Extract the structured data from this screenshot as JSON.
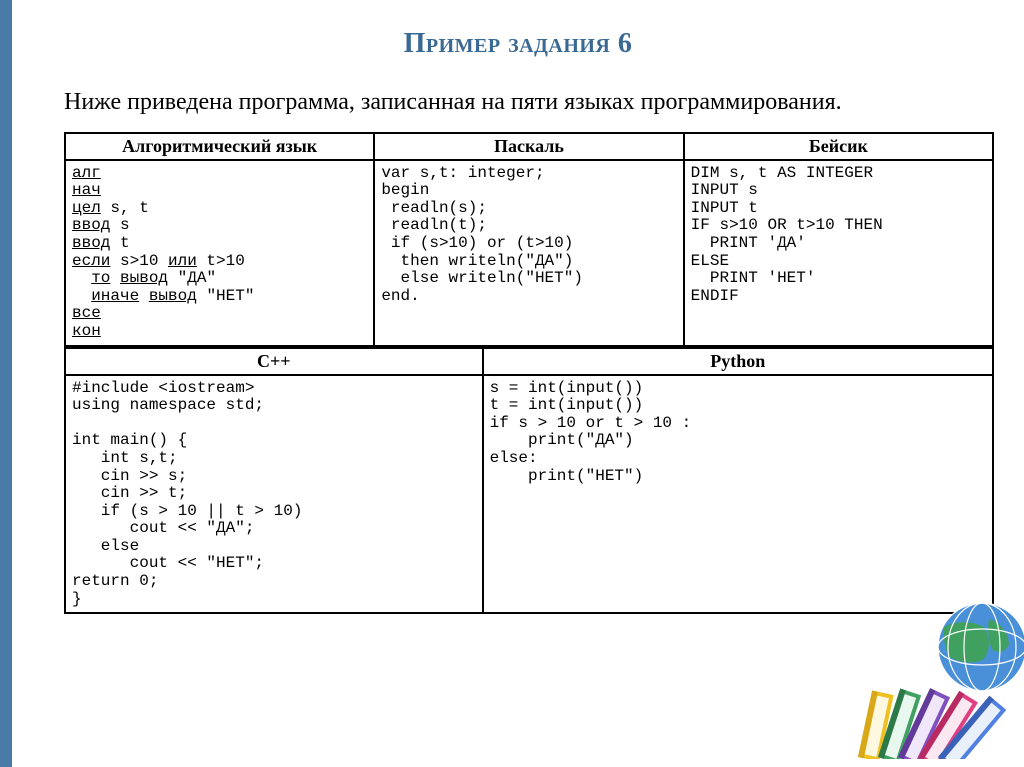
{
  "title": "Пример задания 6",
  "intro": "Ниже приведена программа, записанная на пяти языках программирования.",
  "table": {
    "headers_row1": [
      "Алгоритмический язык",
      "Паскаль",
      "Бейсик"
    ],
    "headers_row2": [
      "C++",
      "Python"
    ],
    "alg_lines": [
      {
        "t": "алг",
        "u": true
      },
      {
        "t": "нач",
        "u": true
      },
      {
        "t": "цел",
        "u": true,
        "rest": " s, t"
      },
      {
        "t": "ввод",
        "u": true,
        "rest": " s"
      },
      {
        "t": "ввод",
        "u": true,
        "rest": " t"
      },
      {
        "t": "если",
        "u": true,
        "rest": " s>10 ",
        "t2": "или",
        "u2": true,
        "rest2": " t>10"
      },
      {
        "indent": "  ",
        "t": "то",
        "u": true,
        "rest": " ",
        "t2": "вывод",
        "u2": true,
        "rest2": " \"ДА\""
      },
      {
        "indent": "  ",
        "t": "иначе",
        "u": true,
        "rest": " ",
        "t2": "вывод",
        "u2": true,
        "rest2": " \"НЕТ\""
      },
      {
        "t": "все",
        "u": true
      },
      {
        "t": "кон",
        "u": true
      }
    ],
    "pascal": "var s,t: integer;\nbegin\n readln(s);\n readln(t);\n if (s>10) or (t>10)\n  then writeln(\"ДА\")\n  else writeln(\"НЕТ\")\nend.",
    "basic": "DIM s, t AS INTEGER\nINPUT s\nINPUT t\nIF s>10 OR t>10 THEN\n  PRINT 'ДА'\nELSE\n  PRINT 'НЕТ'\nENDIF",
    "cpp": "#include <iostream>\nusing namespace std;\n\nint main() {\n   int s,t;\n   cin >> s;\n   cin >> t;\n   if (s > 10 || t > 10)\n      cout << \"ДА\";\n   else\n      cout << \"НЕТ\";\nreturn 0;\n}",
    "python": "s = int(input())\nt = int(input())\nif s > 10 or t > 10 :\n    print(\"ДА\")\nelse:\n    print(\"НЕТ\")"
  },
  "colors": {
    "accent": "#4a7ba6",
    "title": "#3a6a94",
    "border": "#000000",
    "globe_blue": "#4a90d9",
    "globe_dark": "#2e5a8a",
    "book1": "#f0c020",
    "book2": "#3fa060",
    "book3": "#8050c0",
    "book4": "#e04080",
    "book5": "#5080e0"
  }
}
